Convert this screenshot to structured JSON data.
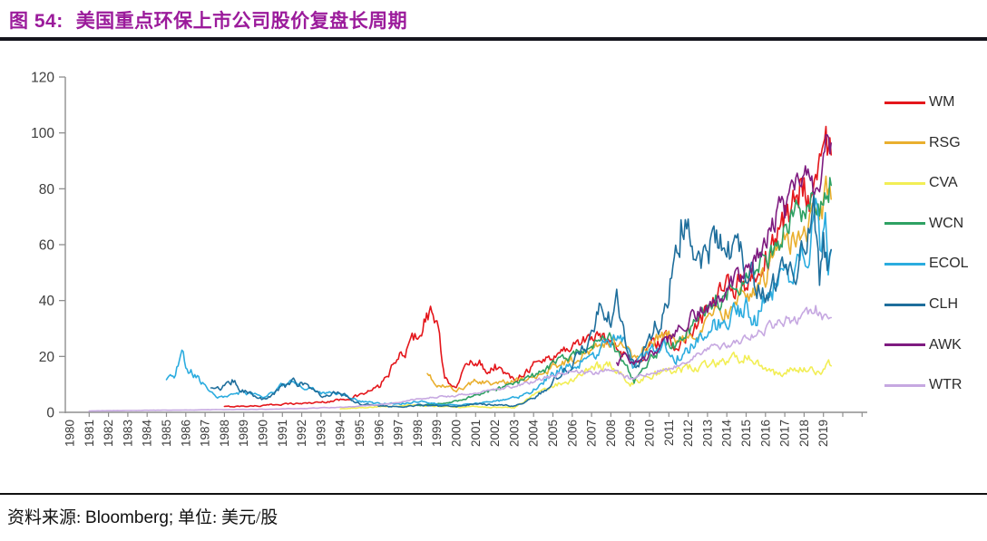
{
  "figure": {
    "label": "图 54:",
    "title": "美国重点环保上市公司股价复盘长周期",
    "title_color": "#9B1B9B"
  },
  "footer": {
    "prefix": "资料来源:",
    "source": "Bloomberg;",
    "unit_label": "单位:",
    "unit": "美元/股"
  },
  "chart_data": {
    "type": "line",
    "title": "美国重点环保上市公司股价复盘长周期",
    "xlabel": "",
    "ylabel": "美元/股",
    "x_range": [
      1980,
      2020
    ],
    "ylim": [
      0,
      120
    ],
    "y_ticks": [
      0,
      20,
      40,
      60,
      80,
      100,
      120
    ],
    "x_tick_labels": [
      "1980",
      "1981",
      "1982",
      "1983",
      "1984",
      "1985",
      "1986",
      "1987",
      "1988",
      "1989",
      "1990",
      "1991",
      "1992",
      "1993",
      "1994",
      "1995",
      "1996",
      "1997",
      "1998",
      "1999",
      "2000",
      "2001",
      "2002",
      "2003",
      "2004",
      "2005",
      "2006",
      "2007",
      "2008",
      "2009",
      "2010",
      "2011",
      "2012",
      "2013",
      "2014",
      "2015",
      "2016",
      "2017",
      "2018",
      "2019"
    ],
    "grid": false,
    "legend_position": "right",
    "axis_color": "#8F8F8F",
    "tick_label_color": "#3D3D3D",
    "series": [
      {
        "name": "WM",
        "color": "#E4161B",
        "vol": 0.05,
        "points": [
          [
            1988,
            2
          ],
          [
            1989,
            2.2
          ],
          [
            1990,
            2.4
          ],
          [
            1991,
            3
          ],
          [
            1992,
            3.2
          ],
          [
            1993,
            3.6
          ],
          [
            1994,
            4.5
          ],
          [
            1995,
            6
          ],
          [
            1996,
            9
          ],
          [
            1997,
            19
          ],
          [
            1998,
            28
          ],
          [
            1998.6,
            36
          ],
          [
            1999,
            33
          ],
          [
            1999.4,
            11
          ],
          [
            2000,
            10
          ],
          [
            2000.6,
            17
          ],
          [
            2001,
            19
          ],
          [
            2001.6,
            15
          ],
          [
            2002,
            17
          ],
          [
            2002.8,
            12
          ],
          [
            2003.2,
            13
          ],
          [
            2004,
            17
          ],
          [
            2005,
            20
          ],
          [
            2006,
            24
          ],
          [
            2007,
            27
          ],
          [
            2008,
            26
          ],
          [
            2008.8,
            21
          ],
          [
            2009.2,
            17
          ],
          [
            2010,
            23
          ],
          [
            2011,
            26
          ],
          [
            2011.5,
            22
          ],
          [
            2012,
            30
          ],
          [
            2013,
            36
          ],
          [
            2014,
            44
          ],
          [
            2015,
            48
          ],
          [
            2015.5,
            45
          ],
          [
            2016,
            55
          ],
          [
            2016.5,
            62
          ],
          [
            2017,
            70
          ],
          [
            2017.5,
            76
          ],
          [
            2018,
            84
          ],
          [
            2018.4,
            79
          ],
          [
            2019,
            92
          ],
          [
            2019.4,
            98
          ]
        ]
      },
      {
        "name": "RSG",
        "color": "#E9AF2E",
        "vol": 0.045,
        "points": [
          [
            1998.5,
            13
          ],
          [
            1999,
            10
          ],
          [
            2000,
            8
          ],
          [
            2000.5,
            9
          ],
          [
            2001,
            11
          ],
          [
            2002,
            10.5
          ],
          [
            2003,
            11
          ],
          [
            2004,
            13
          ],
          [
            2005,
            16
          ],
          [
            2006,
            19
          ],
          [
            2007,
            23
          ],
          [
            2008,
            25
          ],
          [
            2008.8,
            22
          ],
          [
            2009.3,
            19
          ],
          [
            2010,
            25
          ],
          [
            2011,
            28
          ],
          [
            2011.5,
            25
          ],
          [
            2012,
            27
          ],
          [
            2013,
            32
          ],
          [
            2014,
            37
          ],
          [
            2015,
            41
          ],
          [
            2016,
            49
          ],
          [
            2017,
            60
          ],
          [
            2018,
            66
          ],
          [
            2018.5,
            72
          ],
          [
            2019,
            74
          ],
          [
            2019.4,
            79
          ]
        ]
      },
      {
        "name": "CVA",
        "color": "#F2EE55",
        "vol": 0.05,
        "points": [
          [
            1994,
            1.3
          ],
          [
            1995,
            1.6
          ],
          [
            1996,
            2
          ],
          [
            1997,
            2.4
          ],
          [
            1998,
            2.6
          ],
          [
            1999,
            2.2
          ],
          [
            2000,
            1.8
          ],
          [
            2001,
            2
          ],
          [
            2002,
            1.8
          ],
          [
            2003,
            1.6
          ],
          [
            2004,
            6
          ],
          [
            2005,
            9
          ],
          [
            2006,
            12
          ],
          [
            2007,
            16
          ],
          [
            2008,
            17
          ],
          [
            2009,
            10.5
          ],
          [
            2010,
            13
          ],
          [
            2011,
            15
          ],
          [
            2012,
            16
          ],
          [
            2013,
            17
          ],
          [
            2014,
            18.5
          ],
          [
            2015,
            20
          ],
          [
            2015.6,
            17
          ],
          [
            2016,
            15
          ],
          [
            2016.6,
            13.5
          ],
          [
            2017,
            14.5
          ],
          [
            2018,
            16.5
          ],
          [
            2018.6,
            13.5
          ],
          [
            2019,
            15.5
          ],
          [
            2019.4,
            17
          ]
        ]
      },
      {
        "name": "WCN",
        "color": "#2EA163",
        "vol": 0.045,
        "points": [
          [
            1998,
            2.5
          ],
          [
            1999,
            3
          ],
          [
            2000,
            4
          ],
          [
            2001,
            6
          ],
          [
            2002,
            8
          ],
          [
            2003,
            10
          ],
          [
            2004,
            13
          ],
          [
            2005,
            17
          ],
          [
            2006,
            21
          ],
          [
            2007,
            25
          ],
          [
            2008,
            26
          ],
          [
            2008.7,
            18
          ],
          [
            2009.2,
            11
          ],
          [
            2010,
            19
          ],
          [
            2011,
            26
          ],
          [
            2011.5,
            23
          ],
          [
            2012,
            30
          ],
          [
            2013,
            36
          ],
          [
            2014,
            43
          ],
          [
            2015,
            47
          ],
          [
            2016,
            56
          ],
          [
            2017,
            64
          ],
          [
            2018,
            72
          ],
          [
            2018.5,
            78
          ],
          [
            2018.8,
            70
          ],
          [
            2019,
            78
          ],
          [
            2019.4,
            85
          ]
        ]
      },
      {
        "name": "ECOL",
        "color": "#2BACDF",
        "vol": 0.055,
        "points": [
          [
            1985,
            12
          ],
          [
            1985.4,
            14
          ],
          [
            1985.8,
            21
          ],
          [
            1986.2,
            15
          ],
          [
            1986.6,
            13
          ],
          [
            1987,
            9
          ],
          [
            1987.5,
            5.5
          ],
          [
            1988,
            6
          ],
          [
            1988.5,
            7.5
          ],
          [
            1989,
            7
          ],
          [
            1990,
            5.5
          ],
          [
            1991,
            9.5
          ],
          [
            1991.5,
            11
          ],
          [
            1992,
            9
          ],
          [
            1993,
            7
          ],
          [
            1994,
            6.5
          ],
          [
            1995,
            4
          ],
          [
            1996,
            3
          ],
          [
            1997,
            3
          ],
          [
            1998,
            4
          ],
          [
            1999,
            3
          ],
          [
            2000,
            2.6
          ],
          [
            2001,
            3
          ],
          [
            2002,
            4
          ],
          [
            2003,
            5
          ],
          [
            2004,
            8
          ],
          [
            2005,
            14
          ],
          [
            2006,
            17
          ],
          [
            2007,
            21
          ],
          [
            2008,
            26
          ],
          [
            2008.5,
            28
          ],
          [
            2009.2,
            16
          ],
          [
            2010,
            21
          ],
          [
            2010.7,
            24
          ],
          [
            2011.3,
            19
          ],
          [
            2012,
            22
          ],
          [
            2013,
            29
          ],
          [
            2014,
            34
          ],
          [
            2015,
            37
          ],
          [
            2015.5,
            33
          ],
          [
            2016,
            43
          ],
          [
            2017,
            49
          ],
          [
            2018,
            58
          ],
          [
            2018.6,
            69
          ],
          [
            2018.9,
            55
          ],
          [
            2019.1,
            64
          ],
          [
            2019.25,
            47
          ],
          [
            2019.4,
            58
          ]
        ]
      },
      {
        "name": "CLH",
        "color": "#1E6E9C",
        "vol": 0.06,
        "points": [
          [
            1987.3,
            8
          ],
          [
            1988,
            9
          ],
          [
            1988.4,
            11
          ],
          [
            1989,
            8
          ],
          [
            1990,
            4.5
          ],
          [
            1991,
            9
          ],
          [
            1991.5,
            11
          ],
          [
            1992,
            10
          ],
          [
            1992.6,
            7.5
          ],
          [
            1993,
            6
          ],
          [
            1994,
            7
          ],
          [
            1995,
            3
          ],
          [
            1996,
            2.2
          ],
          [
            1997,
            2
          ],
          [
            1998,
            2.6
          ],
          [
            1999,
            2.2
          ],
          [
            2000,
            2
          ],
          [
            2001,
            3
          ],
          [
            2002,
            2.6
          ],
          [
            2003,
            2.4
          ],
          [
            2004,
            5
          ],
          [
            2005,
            11
          ],
          [
            2006,
            17
          ],
          [
            2007,
            26
          ],
          [
            2007.6,
            40
          ],
          [
            2008,
            33
          ],
          [
            2008.3,
            41
          ],
          [
            2008.8,
            25
          ],
          [
            2009.3,
            16
          ],
          [
            2010,
            27
          ],
          [
            2010.6,
            34
          ],
          [
            2011,
            45
          ],
          [
            2011.7,
            70
          ],
          [
            2012,
            63
          ],
          [
            2012.4,
            50
          ],
          [
            2013,
            57
          ],
          [
            2013.6,
            64
          ],
          [
            2014,
            60
          ],
          [
            2015,
            52
          ],
          [
            2015.7,
            44
          ],
          [
            2016,
            41
          ],
          [
            2016.6,
            49
          ],
          [
            2017,
            52
          ],
          [
            2018,
            56
          ],
          [
            2018.5,
            68
          ],
          [
            2018.8,
            47
          ],
          [
            2019,
            60
          ],
          [
            2019.2,
            50
          ],
          [
            2019.4,
            56
          ]
        ]
      },
      {
        "name": "AWK",
        "color": "#7E1B80",
        "vol": 0.04,
        "points": [
          [
            2008.3,
            17
          ],
          [
            2008.8,
            20
          ],
          [
            2009.2,
            17
          ],
          [
            2010,
            20
          ],
          [
            2011,
            26
          ],
          [
            2012,
            33
          ],
          [
            2013,
            38
          ],
          [
            2013.5,
            40
          ],
          [
            2014,
            44
          ],
          [
            2015,
            52
          ],
          [
            2015.5,
            55
          ],
          [
            2016,
            63
          ],
          [
            2016.7,
            74
          ],
          [
            2017,
            71
          ],
          [
            2017.5,
            79
          ],
          [
            2018,
            84
          ],
          [
            2018.4,
            79
          ],
          [
            2018.8,
            88
          ],
          [
            2019,
            91
          ],
          [
            2019.2,
            95
          ],
          [
            2019.4,
            98
          ]
        ]
      },
      {
        "name": "WTR",
        "color": "#C6A8E1",
        "vol": 0.03,
        "points": [
          [
            1981,
            0.5
          ],
          [
            1984,
            0.7
          ],
          [
            1987,
            0.9
          ],
          [
            1990,
            1.1
          ],
          [
            1992,
            1.4
          ],
          [
            1994,
            1.8
          ],
          [
            1995,
            2.2
          ],
          [
            1996,
            2.6
          ],
          [
            1997,
            3.5
          ],
          [
            1998,
            5
          ],
          [
            1999,
            5.5
          ],
          [
            2000,
            6
          ],
          [
            2001,
            7
          ],
          [
            2002,
            8
          ],
          [
            2003,
            9.5
          ],
          [
            2004,
            11
          ],
          [
            2005,
            13
          ],
          [
            2006,
            15
          ],
          [
            2007,
            14
          ],
          [
            2008,
            15
          ],
          [
            2009,
            12
          ],
          [
            2010,
            14
          ],
          [
            2011,
            16
          ],
          [
            2012,
            18
          ],
          [
            2013,
            22
          ],
          [
            2014,
            24
          ],
          [
            2015,
            26
          ],
          [
            2016,
            30
          ],
          [
            2017,
            33
          ],
          [
            2018,
            33.5
          ],
          [
            2018.6,
            37
          ],
          [
            2019,
            33.5
          ],
          [
            2019.4,
            36
          ]
        ]
      }
    ]
  }
}
